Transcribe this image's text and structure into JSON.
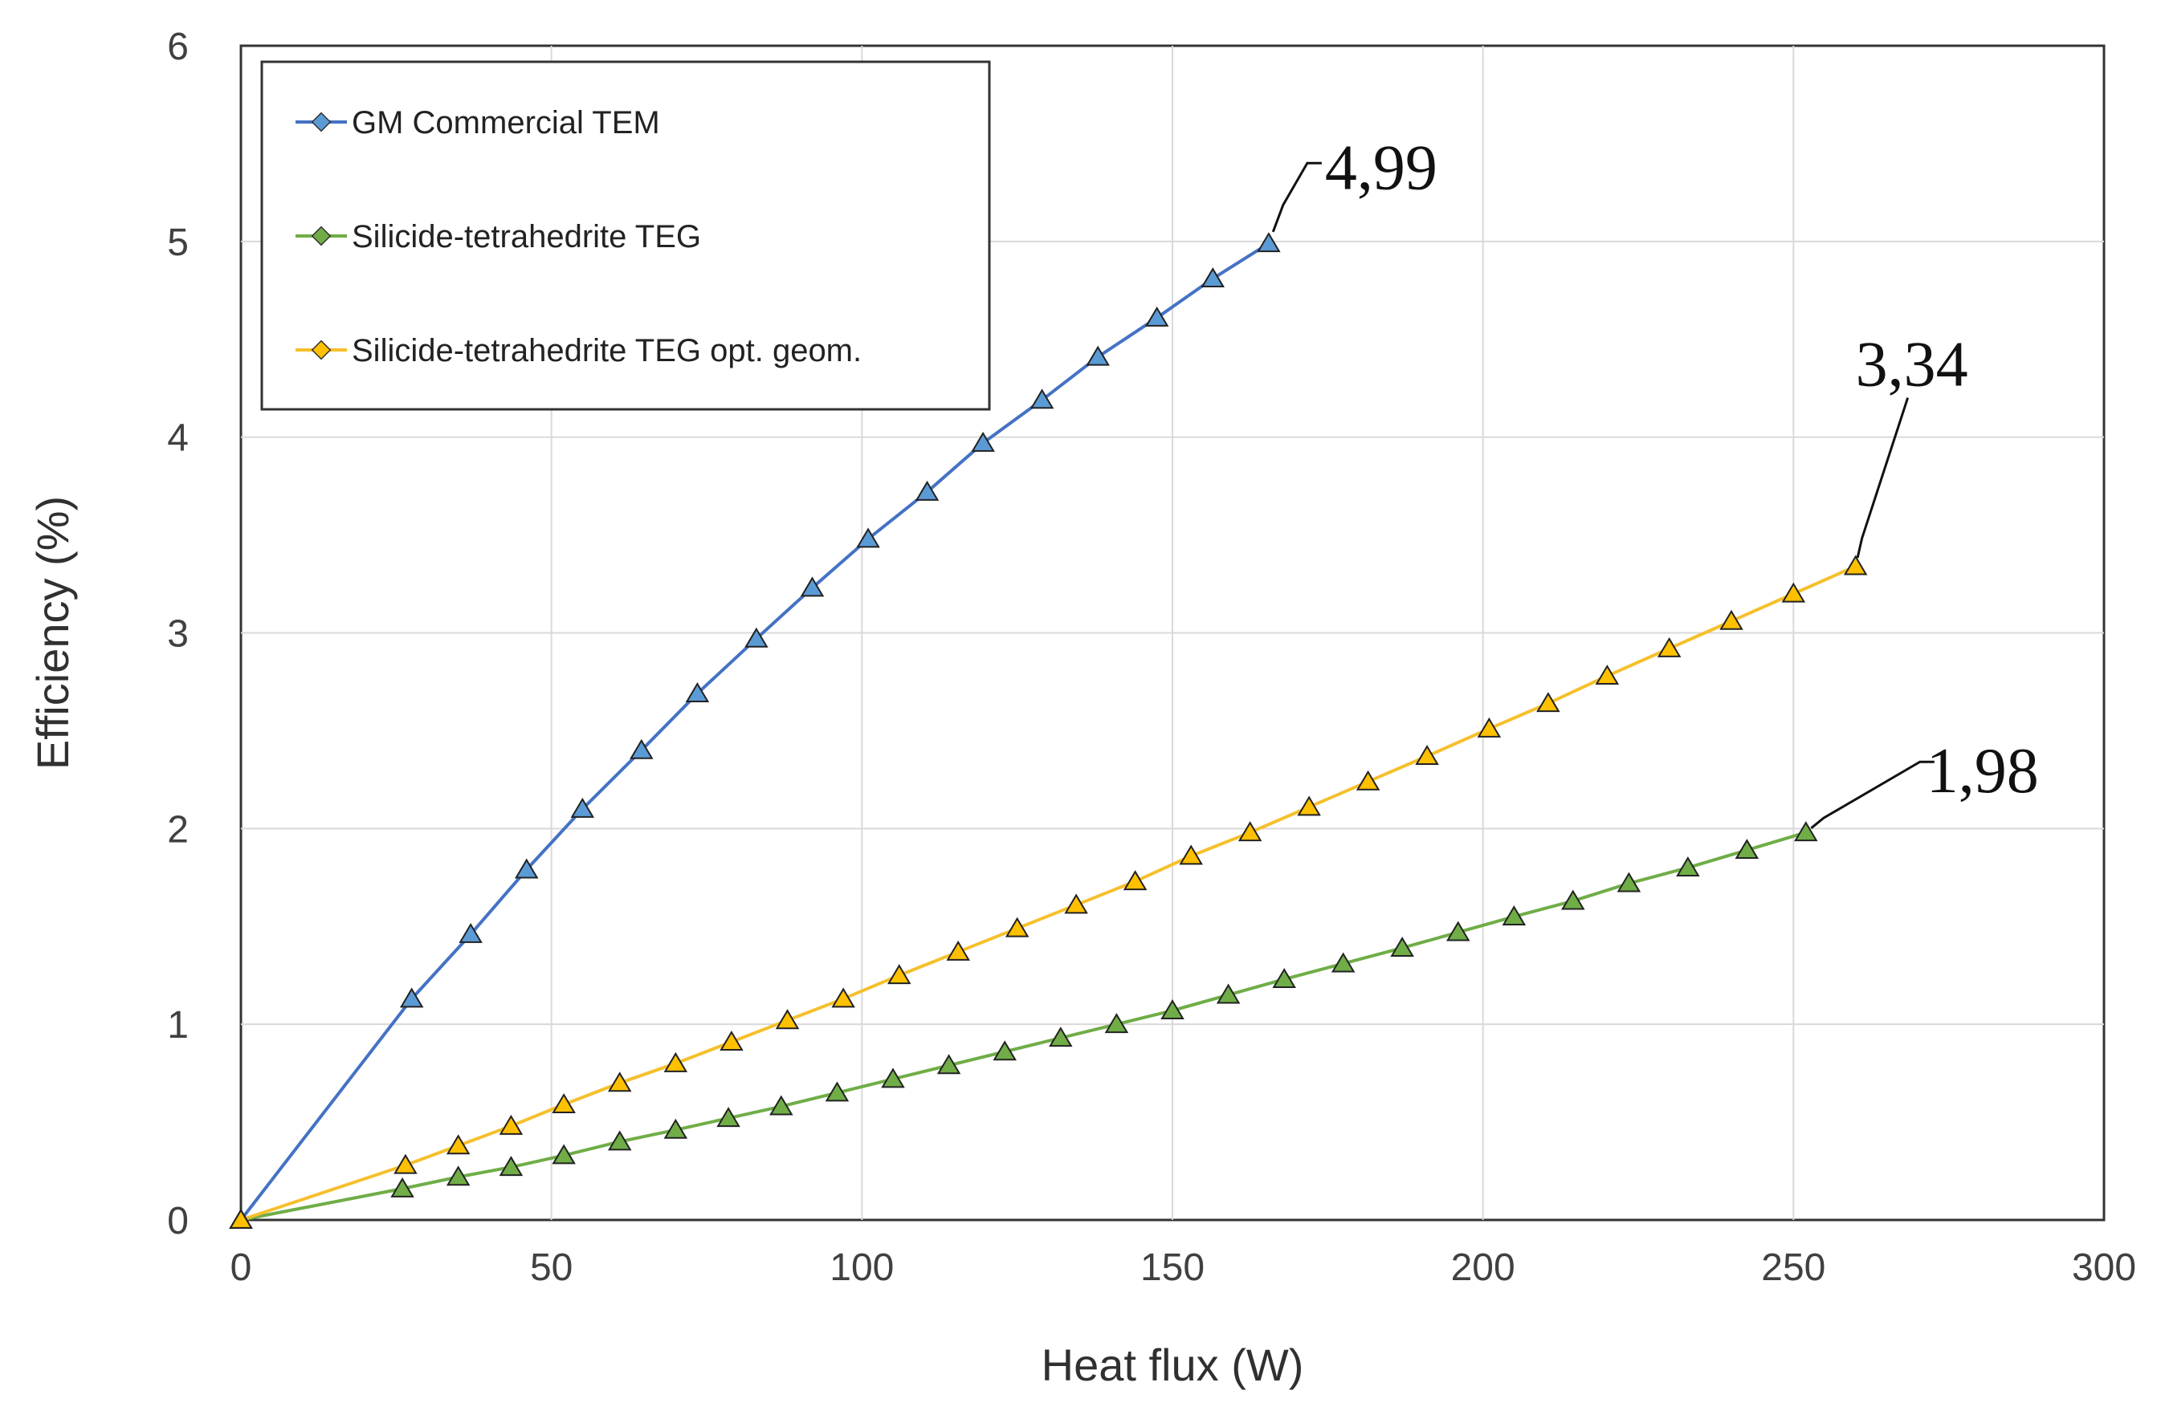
{
  "chart_data": {
    "type": "line",
    "title": "",
    "xlabel": "Heat flux (W)",
    "ylabel": "Efficiency (%)",
    "xlim": [
      0,
      300
    ],
    "ylim": [
      0,
      6
    ],
    "xticks": [
      "0",
      "50",
      "100",
      "150",
      "200",
      "250",
      "300"
    ],
    "yticks": [
      "0",
      "1",
      "2",
      "3",
      "4",
      "5",
      "6"
    ],
    "grid": true,
    "legend_position": "top-left",
    "series": [
      {
        "name": "GM Commercial TEM",
        "color": "#4472C4",
        "marker_fill": "#5B9BD5",
        "x": [
          0,
          27.5,
          37,
          46,
          55,
          64.5,
          73.5,
          83,
          92,
          101,
          110.5,
          119.5,
          129,
          138,
          147.5,
          156.5,
          165.5
        ],
        "y": [
          0,
          1.13,
          1.46,
          1.79,
          2.1,
          2.4,
          2.69,
          2.97,
          3.23,
          3.48,
          3.72,
          3.97,
          4.19,
          4.41,
          4.61,
          4.81,
          4.99
        ],
        "callout": "4,99"
      },
      {
        "name": "Silicide-tetrahedrite TEG",
        "color": "#70AD47",
        "marker_fill": "#70AD47",
        "x": [
          0,
          26,
          35,
          43.5,
          52,
          61,
          70,
          78.5,
          87,
          96,
          105,
          114,
          123,
          132,
          141,
          150,
          159,
          168,
          177.5,
          187,
          196,
          205,
          214.5,
          223.5,
          233,
          242.5,
          252
        ],
        "y": [
          0,
          0.16,
          0.22,
          0.27,
          0.33,
          0.4,
          0.46,
          0.52,
          0.58,
          0.65,
          0.72,
          0.79,
          0.86,
          0.93,
          1.0,
          1.07,
          1.15,
          1.23,
          1.31,
          1.39,
          1.47,
          1.55,
          1.63,
          1.72,
          1.8,
          1.89,
          1.98
        ],
        "callout": "1,98"
      },
      {
        "name": "Silicide-tetrahedrite TEG opt. geom.",
        "color": "#F5C02C",
        "marker_fill": "#FFC000",
        "x": [
          0,
          26.5,
          35,
          43.5,
          52,
          61,
          70,
          79,
          88,
          97,
          106,
          115.5,
          125,
          134.5,
          144,
          153,
          162.5,
          172,
          181.5,
          191,
          201,
          210.5,
          220,
          230,
          240,
          250,
          260
        ],
        "y": [
          0,
          0.28,
          0.38,
          0.48,
          0.59,
          0.7,
          0.8,
          0.91,
          1.02,
          1.13,
          1.25,
          1.37,
          1.49,
          1.61,
          1.73,
          1.86,
          1.98,
          2.11,
          2.24,
          2.37,
          2.51,
          2.64,
          2.78,
          2.92,
          3.06,
          3.2,
          3.34
        ],
        "callout": "3,34"
      }
    ]
  }
}
